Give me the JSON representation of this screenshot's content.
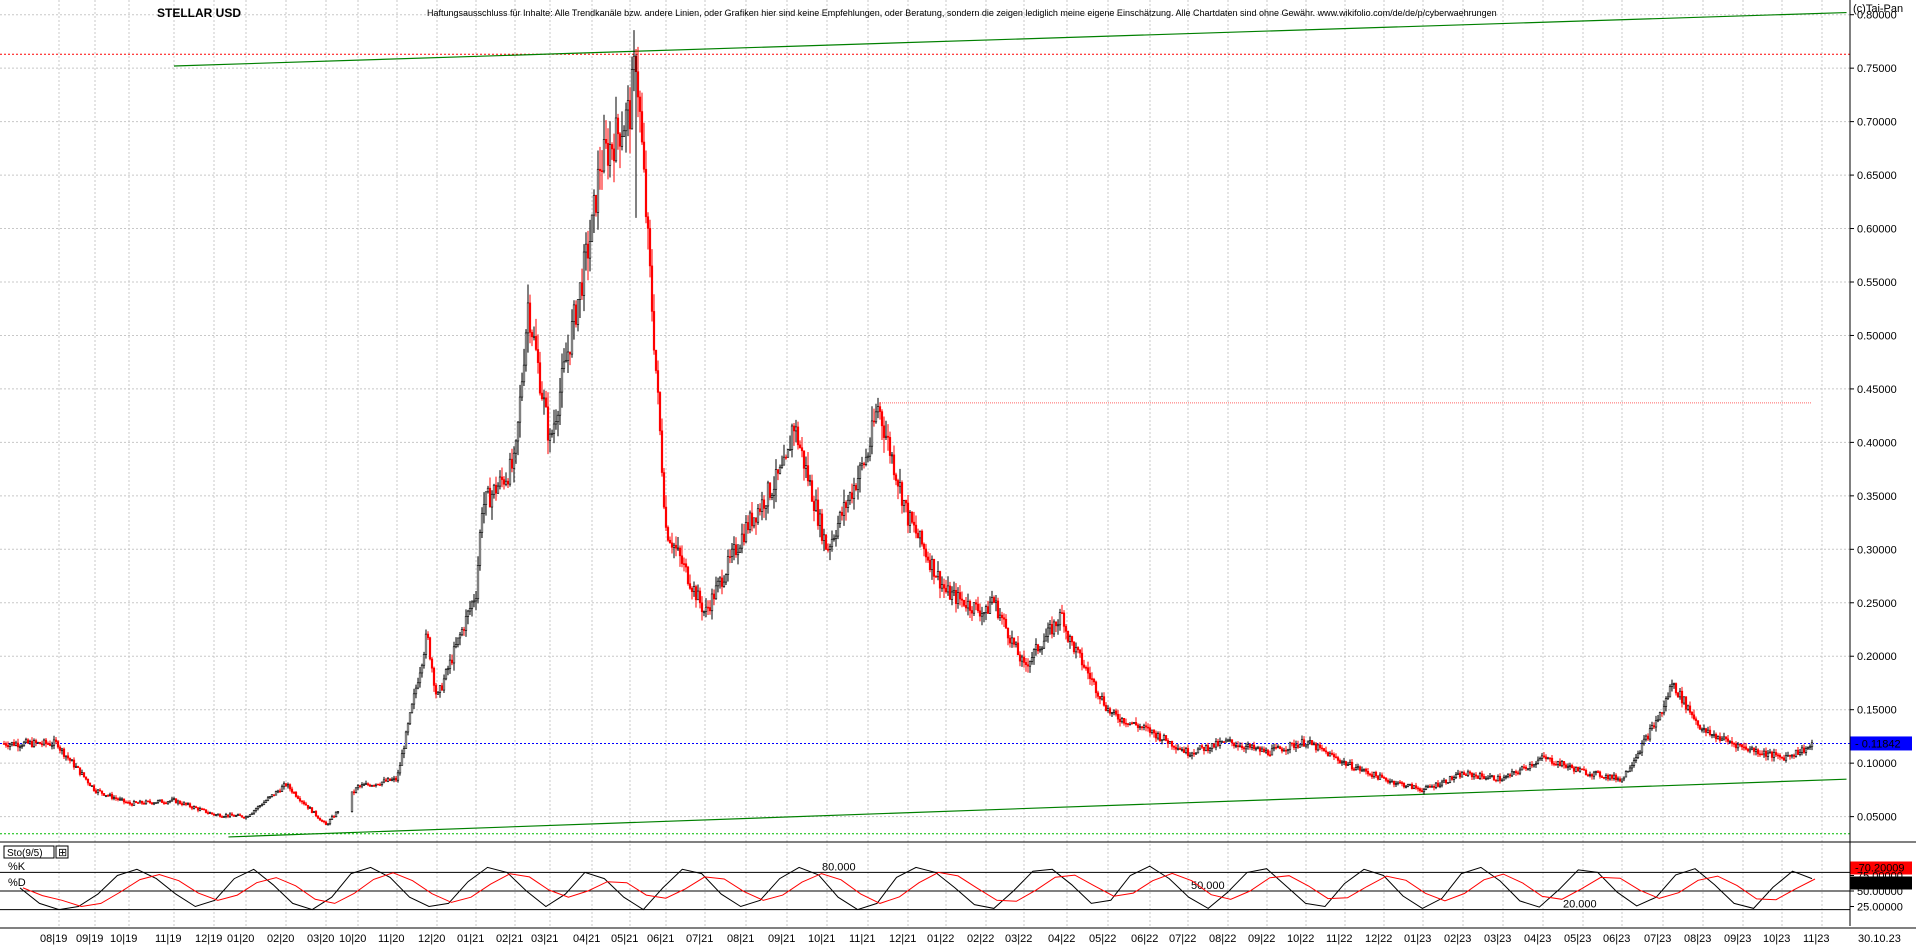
{
  "chart_data": [
    {
      "type": "candlestick",
      "title": "STELLAR USD",
      "disclaimer": "Haftungsausschluss für Inhalte: Alle Trendkanäle bzw. andere Linien, oder Grafiken hier sind keine Empfehlungen, oder Beratung, sondern die zeigen lediglich meine eigene Einschätzung. Alle Chartdaten sind ohne Gewähr.  www.wikifolio.com/de/de/p/cyberwaehrungen",
      "copyright": "(c)Tai-Pan",
      "ylim": [
        0.03,
        0.81
      ],
      "yticks": [
        0.05,
        0.1,
        0.15,
        0.2,
        0.25,
        0.3,
        0.35,
        0.4,
        0.45,
        0.5,
        0.55,
        0.6,
        0.65,
        0.7,
        0.75,
        0.8
      ],
      "ytick_labels": [
        "0.05000",
        "0.10000",
        "0.15000",
        "0.20000",
        "0.25000",
        "0.30000",
        "0.35000",
        "0.40000",
        "0.45000",
        "0.50000",
        "0.55000",
        "0.60000",
        "0.65000",
        "0.70000",
        "0.75000",
        "0.80000"
      ],
      "xticks": [
        "08|19",
        "09|19",
        "10|19",
        "11|19",
        "12|19",
        "01|20",
        "02|20",
        "03|20",
        "10|20",
        "11|20",
        "12|20",
        "01|21",
        "02|21",
        "03|21",
        "04|21",
        "05|21",
        "06|21",
        "07|21",
        "08|21",
        "09|21",
        "10|21",
        "11|21",
        "12|21",
        "01|22",
        "02|22",
        "03|22",
        "04|22",
        "05|22",
        "06|22",
        "07|22",
        "08|22",
        "09|22",
        "10|22",
        "11|22",
        "12|22",
        "01|23",
        "02|23",
        "03|23",
        "04|23",
        "05|23",
        "06|23",
        "07|23",
        "08|23",
        "09|23",
        "10|23",
        "11|23"
      ],
      "last_date": "30.10.23",
      "x_months": [
        {
          "date": "2019-08-01",
          "price": 0.115
        },
        {
          "date": "2019-09-01",
          "price": 0.075
        },
        {
          "date": "2019-10-01",
          "price": 0.062
        },
        {
          "date": "2019-11-01",
          "price": 0.065
        },
        {
          "date": "2019-12-01",
          "price": 0.052
        },
        {
          "date": "2020-01-01",
          "price": 0.05
        },
        {
          "date": "2020-02-01",
          "price": 0.08
        },
        {
          "date": "2020-03-01",
          "price": 0.042
        },
        {
          "date": "2020-10-01",
          "price": 0.078
        },
        {
          "date": "2020-11-01",
          "price": 0.085
        },
        {
          "date": "2020-12-01",
          "price": 0.16
        },
        {
          "date": "2021-01-01",
          "price": 0.26
        },
        {
          "date": "2021-02-01",
          "price": 0.38
        },
        {
          "date": "2021-03-01",
          "price": 0.4
        },
        {
          "date": "2021-04-01",
          "price": 0.6
        },
        {
          "date": "2021-05-01",
          "price": 0.71
        },
        {
          "date": "2021-06-01",
          "price": 0.32
        },
        {
          "date": "2021-07-01",
          "price": 0.24
        },
        {
          "date": "2021-08-01",
          "price": 0.32
        },
        {
          "date": "2021-09-01",
          "price": 0.38
        },
        {
          "date": "2021-10-01",
          "price": 0.3
        },
        {
          "date": "2021-11-01",
          "price": 0.39
        },
        {
          "date": "2021-12-01",
          "price": 0.33
        },
        {
          "date": "2022-01-01",
          "price": 0.26
        },
        {
          "date": "2022-02-01",
          "price": 0.24
        },
        {
          "date": "2022-03-01",
          "price": 0.19
        },
        {
          "date": "2022-04-01",
          "price": 0.22
        },
        {
          "date": "2022-05-01",
          "price": 0.15
        },
        {
          "date": "2022-06-01",
          "price": 0.13
        },
        {
          "date": "2022-07-01",
          "price": 0.11
        },
        {
          "date": "2022-08-01",
          "price": 0.12
        },
        {
          "date": "2022-09-01",
          "price": 0.11
        },
        {
          "date": "2022-10-01",
          "price": 0.12
        },
        {
          "date": "2022-11-01",
          "price": 0.1
        },
        {
          "date": "2022-12-01",
          "price": 0.085
        },
        {
          "date": "2023-01-01",
          "price": 0.075
        },
        {
          "date": "2023-02-01",
          "price": 0.09
        },
        {
          "date": "2023-03-01",
          "price": 0.085
        },
        {
          "date": "2023-04-01",
          "price": 0.105
        },
        {
          "date": "2023-05-01",
          "price": 0.092
        },
        {
          "date": "2023-06-01",
          "price": 0.085
        },
        {
          "date": "2023-07-01",
          "price": 0.15
        },
        {
          "date": "2023-08-01",
          "price": 0.13
        },
        {
          "date": "2023-09-01",
          "price": 0.115
        },
        {
          "date": "2023-10-01",
          "price": 0.105
        },
        {
          "date": "2023-10-30",
          "price": 0.1184
        }
      ],
      "current_price_label": "0.11842",
      "current_price": 0.11842,
      "resistance_level": 0.763,
      "trendlines": [
        {
          "name": "upper-channel",
          "from": {
            "date": "2019-11-01",
            "price": 0.752
          },
          "to": {
            "date": "2023-11-20",
            "price": 0.802
          }
        },
        {
          "name": "lower-channel",
          "from": {
            "date": "2019-12-15",
            "price": 0.031
          },
          "to": {
            "date": "2023-11-20",
            "price": 0.085
          }
        }
      ]
    },
    {
      "type": "line",
      "title": "Sto(9/5)",
      "series": [
        {
          "name": "%K"
        },
        {
          "name": "%D"
        }
      ],
      "ylim": [
        0,
        100
      ],
      "levels": [
        80,
        50,
        20
      ],
      "level_labels": [
        "80.000",
        "50.000",
        "20.000"
      ],
      "yticks": [
        25,
        50,
        75
      ],
      "ytick_labels": [
        "25.00000",
        "50.00000",
        "75.00000"
      ],
      "k_last_label": "70.20009",
      "d_last_label": "70.15244",
      "k_points": [
        55,
        30,
        20,
        25,
        45,
        75,
        85,
        70,
        45,
        25,
        35,
        70,
        85,
        60,
        30,
        20,
        40,
        78,
        88,
        72,
        40,
        25,
        30,
        65,
        88,
        80,
        50,
        25,
        45,
        80,
        70,
        40,
        20,
        55,
        85,
        78,
        45,
        25,
        35,
        70,
        88,
        76,
        40,
        20,
        30,
        72,
        88,
        80,
        55,
        28,
        22,
        50,
        82,
        85,
        60,
        30,
        35,
        75,
        90,
        70,
        40,
        22,
        48,
        80,
        86,
        58,
        30,
        25,
        62,
        85,
        75,
        42,
        22,
        38,
        78,
        88,
        66,
        34,
        24,
        52,
        84,
        80,
        48,
        26,
        40,
        76,
        86,
        60,
        30,
        22,
        56,
        82,
        70
      ]
    }
  ]
}
